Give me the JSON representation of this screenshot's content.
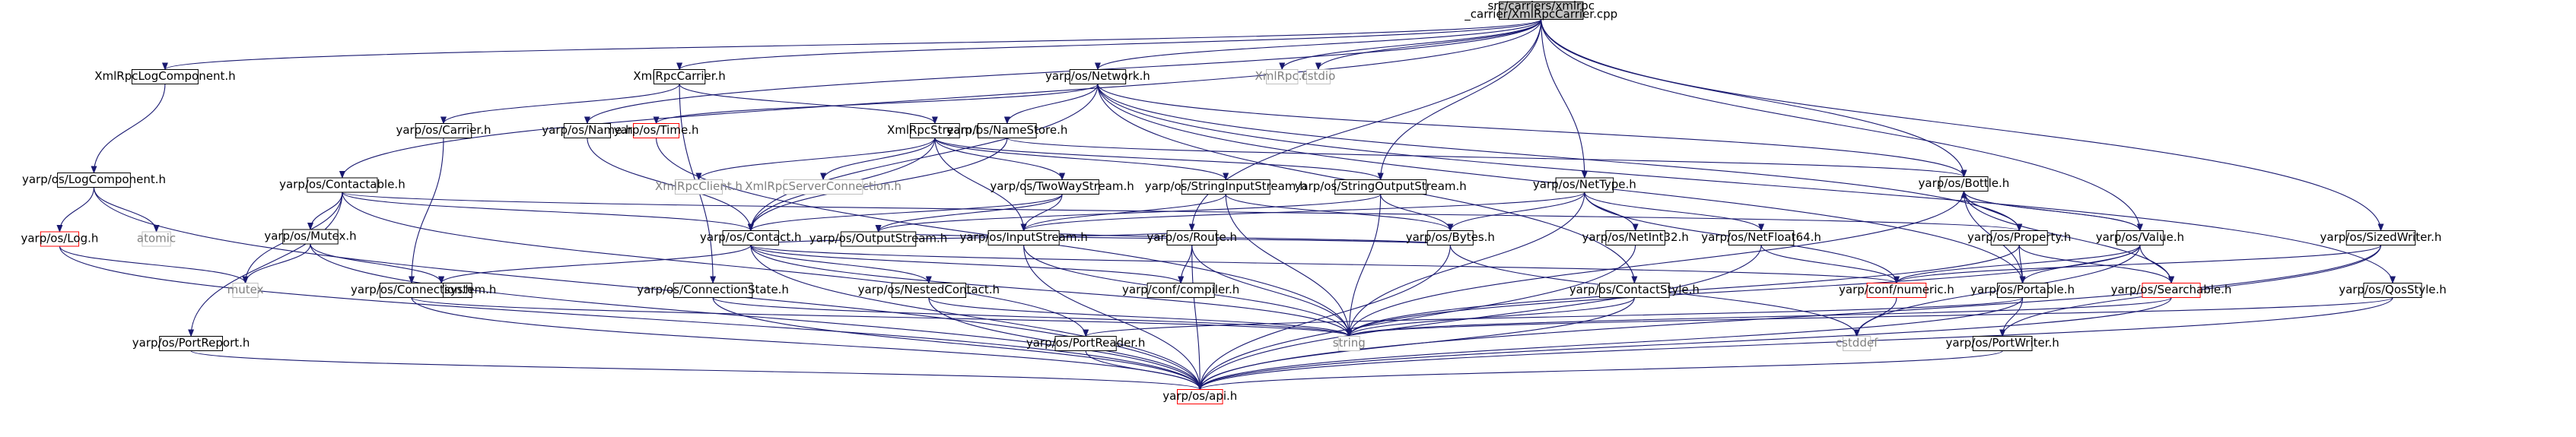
{
  "graph": {
    "title": "src/carriers/xmlrpc_carrier/XmlRpcCarrier.cpp",
    "root_lines": [
      "src/carriers/xmlrpc",
      "_carrier/XmlRpcCarrier.cpp"
    ],
    "nodes": [
      {
        "id": "root",
        "label": "src/carriers/xmlrpc_carrier/XmlRpcCarrier.cpp",
        "style": "root"
      },
      {
        "id": "XmlRpcLogComponent",
        "label": "XmlRpcLogComponent.h",
        "style": "normal"
      },
      {
        "id": "XmlRpcCarrierH",
        "label": "XmlRpcCarrier.h",
        "style": "normal"
      },
      {
        "id": "Network",
        "label": "yarp/os/Network.h",
        "style": "normal"
      },
      {
        "id": "XmlRpc",
        "label": "XmlRpc.h",
        "style": "gray"
      },
      {
        "id": "cstdio",
        "label": "cstdio",
        "style": "gray"
      },
      {
        "id": "LogComponent",
        "label": "yarp/os/LogComponent.h",
        "style": "normal"
      },
      {
        "id": "Carrier",
        "label": "yarp/os/Carrier.h",
        "style": "normal"
      },
      {
        "id": "Name",
        "label": "yarp/os/Name.h",
        "style": "normal"
      },
      {
        "id": "XmlRpcStream",
        "label": "XmlRpcStream.h",
        "style": "normal"
      },
      {
        "id": "Time",
        "label": "yarp/os/Time.h",
        "style": "red"
      },
      {
        "id": "NameStore",
        "label": "yarp/os/NameStore.h",
        "style": "normal"
      },
      {
        "id": "Log",
        "label": "yarp/os/Log.h",
        "style": "red"
      },
      {
        "id": "atomic",
        "label": "atomic",
        "style": "gray"
      },
      {
        "id": "Contactable",
        "label": "yarp/os/Contactable.h",
        "style": "normal"
      },
      {
        "id": "XmlRpcClient",
        "label": "XmlRpcClient.h",
        "style": "gray"
      },
      {
        "id": "XmlRpcServerConnection",
        "label": "XmlRpcServerConnection.h",
        "style": "gray"
      },
      {
        "id": "TwoWayStream",
        "label": "yarp/os/TwoWayStream.h",
        "style": "normal"
      },
      {
        "id": "StringInputStream",
        "label": "yarp/os/StringInputStream.h",
        "style": "normal"
      },
      {
        "id": "StringOutputStream",
        "label": "yarp/os/StringOutputStream.h",
        "style": "normal"
      },
      {
        "id": "NetType",
        "label": "yarp/os/NetType.h",
        "style": "normal"
      },
      {
        "id": "Bottle",
        "label": "yarp/os/Bottle.h",
        "style": "normal"
      },
      {
        "id": "Mutex",
        "label": "yarp/os/Mutex.h",
        "style": "normal"
      },
      {
        "id": "Contact",
        "label": "yarp/os/Contact.h",
        "style": "normal"
      },
      {
        "id": "OutputStream",
        "label": "yarp/os/OutputStream.h",
        "style": "normal"
      },
      {
        "id": "InputStream",
        "label": "yarp/os/InputStream.h",
        "style": "normal"
      },
      {
        "id": "Route",
        "label": "yarp/os/Route.h",
        "style": "normal"
      },
      {
        "id": "Bytes",
        "label": "yarp/os/Bytes.h",
        "style": "normal"
      },
      {
        "id": "NetInt32",
        "label": "yarp/os/NetInt32.h",
        "style": "normal"
      },
      {
        "id": "NetFloat64",
        "label": "yarp/os/NetFloat64.h",
        "style": "normal"
      },
      {
        "id": "Property",
        "label": "yarp/os/Property.h",
        "style": "normal"
      },
      {
        "id": "Value",
        "label": "yarp/os/Value.h",
        "style": "normal"
      },
      {
        "id": "SizedWriter",
        "label": "yarp/os/SizedWriter.h",
        "style": "normal"
      },
      {
        "id": "mutex",
        "label": "mutex",
        "style": "gray"
      },
      {
        "id": "confSystem",
        "label": "yarp/conf/system.h",
        "style": "normal"
      },
      {
        "id": "Connection",
        "label": "yarp/os/Connection.h",
        "style": "normal"
      },
      {
        "id": "ConnectionState",
        "label": "yarp/os/ConnectionState.h",
        "style": "normal"
      },
      {
        "id": "NestedContact",
        "label": "yarp/os/NestedContact.h",
        "style": "normal"
      },
      {
        "id": "confCompiler",
        "label": "yarp/conf/compiler.h",
        "style": "normal"
      },
      {
        "id": "ContactStyle",
        "label": "yarp/os/ContactStyle.h",
        "style": "normal"
      },
      {
        "id": "confNumeric",
        "label": "yarp/conf/numeric.h",
        "style": "red"
      },
      {
        "id": "Portable",
        "label": "yarp/os/Portable.h",
        "style": "normal"
      },
      {
        "id": "Searchable",
        "label": "yarp/os/Searchable.h",
        "style": "red"
      },
      {
        "id": "QosStyle",
        "label": "yarp/os/QosStyle.h",
        "style": "normal"
      },
      {
        "id": "PortReport",
        "label": "yarp/os/PortReport.h",
        "style": "normal"
      },
      {
        "id": "PortReader",
        "label": "yarp/os/PortReader.h",
        "style": "normal"
      },
      {
        "id": "string",
        "label": "string",
        "style": "gray"
      },
      {
        "id": "cstddef",
        "label": "cstddef",
        "style": "gray"
      },
      {
        "id": "PortWriter",
        "label": "yarp/os/PortWriter.h",
        "style": "normal"
      },
      {
        "id": "api",
        "label": "yarp/os/api.h",
        "style": "red"
      }
    ],
    "edges": [
      [
        "root",
        "XmlRpcLogComponent"
      ],
      [
        "root",
        "XmlRpcCarrierH"
      ],
      [
        "root",
        "Network"
      ],
      [
        "root",
        "XmlRpc"
      ],
      [
        "root",
        "cstdio"
      ],
      [
        "root",
        "Contactable"
      ],
      [
        "root",
        "Name"
      ],
      [
        "root",
        "StringOutputStream"
      ],
      [
        "root",
        "NetType"
      ],
      [
        "root",
        "Bottle"
      ],
      [
        "root",
        "Route"
      ],
      [
        "root",
        "SizedWriter"
      ],
      [
        "root",
        "Value"
      ],
      [
        "XmlRpcLogComponent",
        "LogComponent"
      ],
      [
        "LogComponent",
        "Log"
      ],
      [
        "LogComponent",
        "atomic"
      ],
      [
        "LogComponent",
        "api"
      ],
      [
        "Log",
        "mutex"
      ],
      [
        "Log",
        "api"
      ],
      [
        "XmlRpcCarrierH",
        "Carrier"
      ],
      [
        "XmlRpcCarrierH",
        "XmlRpcStream"
      ],
      [
        "XmlRpcCarrierH",
        "ConnectionState"
      ],
      [
        "Carrier",
        "Connection"
      ],
      [
        "Connection",
        "string"
      ],
      [
        "Connection",
        "api"
      ],
      [
        "Name",
        "Contact"
      ],
      [
        "XmlRpcStream",
        "XmlRpcClient"
      ],
      [
        "XmlRpcStream",
        "XmlRpcServerConnection"
      ],
      [
        "XmlRpcStream",
        "TwoWayStream"
      ],
      [
        "XmlRpcStream",
        "StringInputStream"
      ],
      [
        "XmlRpcStream",
        "StringOutputStream"
      ],
      [
        "XmlRpcStream",
        "Contact"
      ],
      [
        "XmlRpcStream",
        "InputStream"
      ],
      [
        "Network",
        "Time"
      ],
      [
        "Network",
        "NameStore"
      ],
      [
        "Network",
        "Bottle"
      ],
      [
        "Network",
        "Property"
      ],
      [
        "Network",
        "Portable"
      ],
      [
        "Network",
        "ContactStyle"
      ],
      [
        "Network",
        "Contact"
      ],
      [
        "Network",
        "QosStyle"
      ],
      [
        "Time",
        "string"
      ],
      [
        "NameStore",
        "Bottle"
      ],
      [
        "NameStore",
        "Contact"
      ],
      [
        "Contactable",
        "Contact"
      ],
      [
        "Contactable",
        "Mutex"
      ],
      [
        "Contactable",
        "PortReport"
      ],
      [
        "Contactable",
        "PortReader"
      ],
      [
        "Contactable",
        "Property"
      ],
      [
        "Contactable",
        "mutex"
      ],
      [
        "TwoWayStream",
        "Contact"
      ],
      [
        "TwoWayStream",
        "InputStream"
      ],
      [
        "TwoWayStream",
        "OutputStream"
      ],
      [
        "StringInputStream",
        "InputStream"
      ],
      [
        "StringInputStream",
        "string"
      ],
      [
        "StringInputStream",
        "Bytes"
      ],
      [
        "StringOutputStream",
        "OutputStream"
      ],
      [
        "StringOutputStream",
        "string"
      ],
      [
        "StringOutputStream",
        "Bytes"
      ],
      [
        "NetType",
        "NetInt32"
      ],
      [
        "NetType",
        "NetFloat64"
      ],
      [
        "NetType",
        "Bytes"
      ],
      [
        "NetType",
        "confNumeric"
      ],
      [
        "NetType",
        "string"
      ],
      [
        "NetType",
        "InputStream"
      ],
      [
        "Bottle",
        "Property"
      ],
      [
        "Bottle",
        "Value"
      ],
      [
        "Bottle",
        "Portable"
      ],
      [
        "Bottle",
        "Searchable"
      ],
      [
        "Bottle",
        "string"
      ],
      [
        "Mutex",
        "mutex"
      ],
      [
        "Mutex",
        "confSystem"
      ],
      [
        "Mutex",
        "api"
      ],
      [
        "Contact",
        "NestedContact"
      ],
      [
        "Contact",
        "confSystem"
      ],
      [
        "Contact",
        "confCompiler"
      ],
      [
        "Contact",
        "string"
      ],
      [
        "Contact",
        "api"
      ],
      [
        "Contact",
        "confNumeric"
      ],
      [
        "OutputStream",
        "Bytes"
      ],
      [
        "InputStream",
        "Bytes"
      ],
      [
        "InputStream",
        "string"
      ],
      [
        "InputStream",
        "api"
      ],
      [
        "Route",
        "Contact"
      ],
      [
        "Route",
        "confCompiler"
      ],
      [
        "Route",
        "string"
      ],
      [
        "Route",
        "api"
      ],
      [
        "Bytes",
        "cstddef"
      ],
      [
        "Bytes",
        "api"
      ],
      [
        "NetInt32",
        "api"
      ],
      [
        "NetFloat64",
        "confNumeric"
      ],
      [
        "NetFloat64",
        "api"
      ],
      [
        "Property",
        "Bottle"
      ],
      [
        "Property",
        "Portable"
      ],
      [
        "Property",
        "Searchable"
      ],
      [
        "Property",
        "string"
      ],
      [
        "Value",
        "Bottle"
      ],
      [
        "Value",
        "Searchable"
      ],
      [
        "Value",
        "Portable"
      ],
      [
        "Value",
        "confNumeric"
      ],
      [
        "Value",
        "string"
      ],
      [
        "Value",
        "cstddef"
      ],
      [
        "SizedWriter",
        "PortWriter"
      ],
      [
        "SizedWriter",
        "confNumeric"
      ],
      [
        "SizedWriter",
        "api"
      ],
      [
        "ConnectionState",
        "string"
      ],
      [
        "ConnectionState",
        "api"
      ],
      [
        "NestedContact",
        "string"
      ],
      [
        "NestedContact",
        "api"
      ],
      [
        "ContactStyle",
        "string"
      ],
      [
        "ContactStyle",
        "api"
      ],
      [
        "confNumeric",
        "cstddef"
      ],
      [
        "Portable",
        "PortReader"
      ],
      [
        "Portable",
        "PortWriter"
      ],
      [
        "Portable",
        "api"
      ],
      [
        "Searchable",
        "string"
      ],
      [
        "Searchable",
        "api"
      ],
      [
        "QosStyle",
        "string"
      ],
      [
        "QosStyle",
        "api"
      ],
      [
        "PortReport",
        "api"
      ],
      [
        "PortReader",
        "api"
      ],
      [
        "PortWriter",
        "api"
      ]
    ]
  }
}
